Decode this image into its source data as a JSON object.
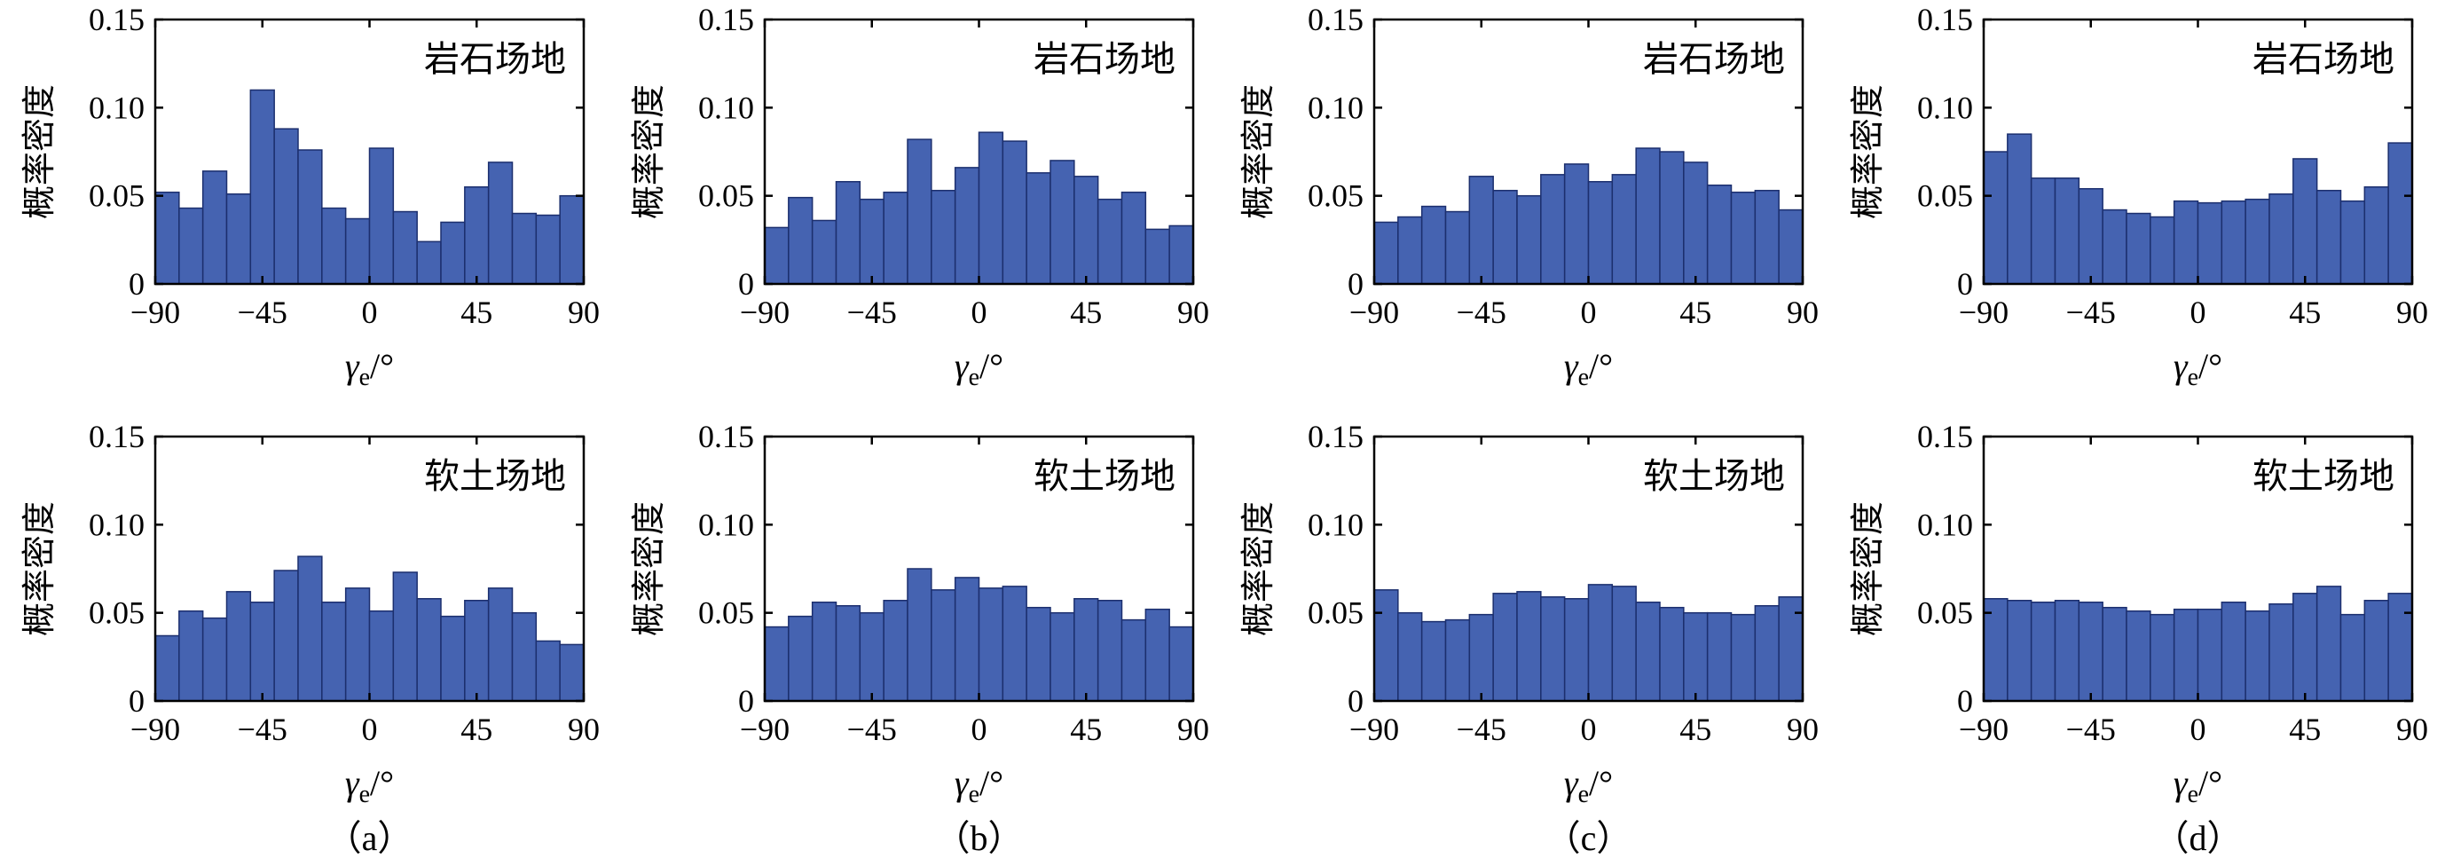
{
  "chart_data": [
    {
      "type": "bar",
      "panel": "a",
      "site": "岩石场地",
      "ylabel": "概率密度",
      "xlabel": "γ_e/°",
      "xlim": [
        -90,
        90
      ],
      "ylim": [
        0,
        0.15
      ],
      "xticks": [
        "−90",
        "−45",
        "0",
        "45",
        "90"
      ],
      "yticks": [
        "0",
        "0.05",
        "0.10",
        "0.15"
      ],
      "values": [
        0.052,
        0.043,
        0.064,
        0.051,
        0.11,
        0.088,
        0.076,
        0.043,
        0.037,
        0.077,
        0.041,
        0.024,
        0.035,
        0.055,
        0.069,
        0.04,
        0.039,
        0.05
      ]
    },
    {
      "type": "bar",
      "panel": "b",
      "site": "岩石场地",
      "ylabel": "概率密度",
      "xlabel": "γ_e/°",
      "xlim": [
        -90,
        90
      ],
      "ylim": [
        0,
        0.15
      ],
      "xticks": [
        "−90",
        "−45",
        "0",
        "45",
        "90"
      ],
      "yticks": [
        "0",
        "0.05",
        "0.10",
        "0.15"
      ],
      "values": [
        0.032,
        0.049,
        0.036,
        0.058,
        0.048,
        0.052,
        0.082,
        0.053,
        0.066,
        0.086,
        0.081,
        0.063,
        0.07,
        0.061,
        0.048,
        0.052,
        0.031,
        0.033
      ]
    },
    {
      "type": "bar",
      "panel": "c",
      "site": "岩石场地",
      "ylabel": "概率密度",
      "xlabel": "γ_e/°",
      "xlim": [
        -90,
        90
      ],
      "ylim": [
        0,
        0.15
      ],
      "xticks": [
        "−90",
        "−45",
        "0",
        "45",
        "90"
      ],
      "yticks": [
        "0",
        "0.05",
        "0.10",
        "0.15"
      ],
      "values": [
        0.035,
        0.038,
        0.044,
        0.041,
        0.061,
        0.053,
        0.05,
        0.062,
        0.068,
        0.058,
        0.062,
        0.077,
        0.075,
        0.069,
        0.056,
        0.052,
        0.053,
        0.042
      ]
    },
    {
      "type": "bar",
      "panel": "d",
      "site": "岩石场地",
      "ylabel": "概率密度",
      "xlabel": "γ_e/°",
      "xlim": [
        -90,
        90
      ],
      "ylim": [
        0,
        0.15
      ],
      "xticks": [
        "−90",
        "−45",
        "0",
        "45",
        "90"
      ],
      "yticks": [
        "0",
        "0.05",
        "0.10",
        "0.15"
      ],
      "values": [
        0.075,
        0.085,
        0.06,
        0.06,
        0.054,
        0.042,
        0.04,
        0.038,
        0.047,
        0.046,
        0.047,
        0.048,
        0.051,
        0.071,
        0.053,
        0.047,
        0.055,
        0.08
      ]
    },
    {
      "type": "bar",
      "panel": "a",
      "site": "软土场地",
      "ylabel": "概率密度",
      "xlabel": "γ_e/°",
      "xlim": [
        -90,
        90
      ],
      "ylim": [
        0,
        0.15
      ],
      "xticks": [
        "−90",
        "−45",
        "0",
        "45",
        "90"
      ],
      "yticks": [
        "0",
        "0.05",
        "0.10",
        "0.15"
      ],
      "values": [
        0.037,
        0.051,
        0.047,
        0.062,
        0.056,
        0.074,
        0.082,
        0.056,
        0.064,
        0.051,
        0.073,
        0.058,
        0.048,
        0.057,
        0.064,
        0.05,
        0.034,
        0.032
      ]
    },
    {
      "type": "bar",
      "panel": "b",
      "site": "软土场地",
      "ylabel": "概率密度",
      "xlabel": "γ_e/°",
      "xlim": [
        -90,
        90
      ],
      "ylim": [
        0,
        0.15
      ],
      "xticks": [
        "−90",
        "−45",
        "0",
        "45",
        "90"
      ],
      "yticks": [
        "0",
        "0.05",
        "0.10",
        "0.15"
      ],
      "values": [
        0.042,
        0.048,
        0.056,
        0.054,
        0.05,
        0.057,
        0.075,
        0.063,
        0.07,
        0.064,
        0.065,
        0.053,
        0.05,
        0.058,
        0.057,
        0.046,
        0.052,
        0.042
      ]
    },
    {
      "type": "bar",
      "panel": "c",
      "site": "软土场地",
      "ylabel": "概率密度",
      "xlabel": "γ_e/°",
      "xlim": [
        -90,
        90
      ],
      "ylim": [
        0,
        0.15
      ],
      "xticks": [
        "−90",
        "−45",
        "0",
        "45",
        "90"
      ],
      "yticks": [
        "0",
        "0.05",
        "0.10",
        "0.15"
      ],
      "values": [
        0.063,
        0.05,
        0.045,
        0.046,
        0.049,
        0.061,
        0.062,
        0.059,
        0.058,
        0.066,
        0.065,
        0.056,
        0.053,
        0.05,
        0.05,
        0.049,
        0.054,
        0.059
      ]
    },
    {
      "type": "bar",
      "panel": "d",
      "site": "软土场地",
      "ylabel": "概率密度",
      "xlabel": "γ_e/°",
      "xlim": [
        -90,
        90
      ],
      "ylim": [
        0,
        0.15
      ],
      "xticks": [
        "−90",
        "−45",
        "0",
        "45",
        "90"
      ],
      "yticks": [
        "0",
        "0.05",
        "0.10",
        "0.15"
      ],
      "values": [
        0.058,
        0.057,
        0.056,
        0.057,
        0.056,
        0.053,
        0.051,
        0.049,
        0.052,
        0.052,
        0.056,
        0.051,
        0.055,
        0.061,
        0.065,
        0.049,
        0.057,
        0.061
      ]
    }
  ],
  "captions": [
    "（a）",
    "（b）",
    "（c）",
    "（d）"
  ],
  "colors": {
    "bar": "#4563b1",
    "bar_edge": "#1c2f6e"
  }
}
